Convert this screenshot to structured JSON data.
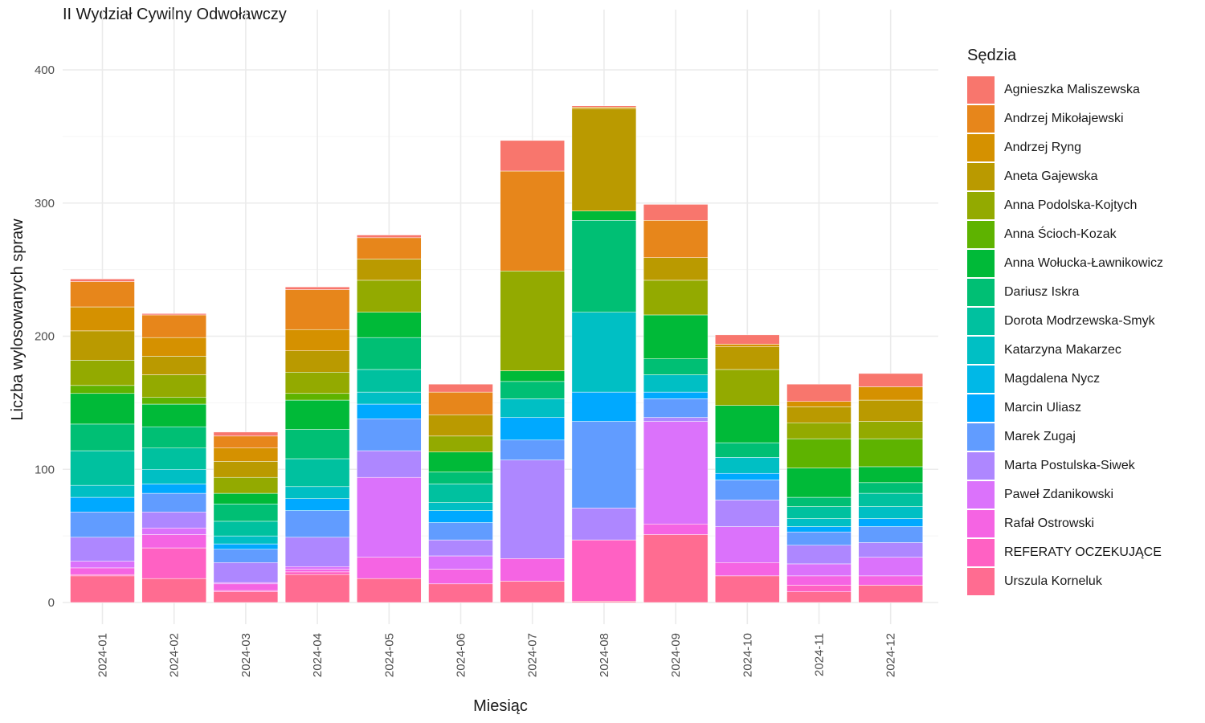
{
  "chart_data": {
    "type": "bar",
    "stacked": true,
    "title": "II Wydział Cywilny Odwoławczy",
    "xlabel": "Miesiąc",
    "ylabel": "Liczba wylosowanych spraw",
    "ylim": [
      0,
      425
    ],
    "yticks": [
      0,
      100,
      200,
      300,
      400
    ],
    "grid": true,
    "legend_title": "Sędzia",
    "legend_position": "right",
    "categories": [
      "2024-01",
      "2024-02",
      "2024-03",
      "2024-04",
      "2024-05",
      "2024-06",
      "2024-07",
      "2024-08",
      "2024-09",
      "2024-10",
      "2024-11",
      "2024-12"
    ],
    "series": [
      {
        "name": "Agnieszka Maliszewska",
        "color": "#F8766D",
        "values": [
          2,
          1,
          3,
          2,
          2,
          6,
          23,
          1,
          12,
          7,
          13,
          10
        ]
      },
      {
        "name": "Andrzej Mikołajewski",
        "color": "#E7861B",
        "values": [
          19,
          17,
          9,
          30,
          16,
          17,
          75,
          0,
          28,
          0,
          0,
          0
        ]
      },
      {
        "name": "Andrzej Ryng",
        "color": "#D59100",
        "values": [
          18,
          14,
          10,
          16,
          0,
          0,
          0,
          1,
          0,
          2,
          4,
          10
        ]
      },
      {
        "name": "Aneta Gajewska",
        "color": "#BA9A00",
        "values": [
          22,
          14,
          12,
          16,
          16,
          16,
          0,
          77,
          17,
          17,
          12,
          16
        ]
      },
      {
        "name": "Anna Podolska-Kojtych",
        "color": "#93AA00",
        "values": [
          19,
          17,
          12,
          16,
          24,
          12,
          75,
          0,
          26,
          27,
          12,
          13
        ]
      },
      {
        "name": "Anna Ścioch-Kozak",
        "color": "#5EB300",
        "values": [
          6,
          5,
          0,
          5,
          0,
          0,
          0,
          0,
          0,
          0,
          22,
          21
        ]
      },
      {
        "name": "Anna Wołucka-Ławnikowicz",
        "color": "#00BA38",
        "values": [
          23,
          17,
          8,
          22,
          19,
          15,
          8,
          7,
          33,
          28,
          22,
          12
        ]
      },
      {
        "name": "Dariusz Iskra",
        "color": "#00BF74",
        "values": [
          20,
          16,
          13,
          22,
          24,
          9,
          13,
          69,
          12,
          11,
          7,
          8
        ]
      },
      {
        "name": "Dorota Modrzewska-Smyk",
        "color": "#00C19F",
        "values": [
          26,
          16,
          11,
          21,
          17,
          14,
          0,
          0,
          0,
          0,
          9,
          10
        ]
      },
      {
        "name": "Katarzyna Makarzec",
        "color": "#00BFC4",
        "values": [
          9,
          11,
          6,
          9,
          9,
          6,
          14,
          60,
          13,
          12,
          6,
          9
        ]
      },
      {
        "name": "Magdalena Nycz",
        "color": "#00B8E7",
        "values": [
          0,
          0,
          0,
          0,
          0,
          0,
          0,
          0,
          0,
          0,
          0,
          0
        ]
      },
      {
        "name": "Marcin Uliasz",
        "color": "#00A9FF",
        "values": [
          11,
          7,
          4,
          9,
          11,
          9,
          17,
          22,
          5,
          5,
          4,
          6
        ]
      },
      {
        "name": "Marek Zugaj",
        "color": "#619CFF",
        "values": [
          19,
          14,
          10,
          20,
          24,
          13,
          15,
          65,
          14,
          15,
          10,
          12
        ]
      },
      {
        "name": "Marta Postulska-Siwek",
        "color": "#AE87FF",
        "values": [
          18,
          12,
          15,
          22,
          20,
          12,
          74,
          24,
          3,
          20,
          14,
          11
        ]
      },
      {
        "name": "Paweł Zdanikowski",
        "color": "#DB72FB",
        "values": [
          5,
          5,
          1,
          2,
          60,
          10,
          0,
          0,
          77,
          27,
          9,
          14
        ]
      },
      {
        "name": "Rafał Ostrowski",
        "color": "#F564E3",
        "values": [
          5,
          10,
          5,
          2,
          16,
          11,
          17,
          0,
          8,
          10,
          7,
          7
        ]
      },
      {
        "name": "REFERATY OCZEKUJĄCE",
        "color": "#FF61C3",
        "values": [
          1,
          23,
          1,
          2,
          0,
          0,
          0,
          46,
          0,
          0,
          5,
          0
        ]
      },
      {
        "name": "Urszula Korneluk",
        "color": "#FF6C91",
        "values": [
          20,
          18,
          8,
          21,
          18,
          14,
          16,
          1,
          51,
          20,
          8,
          13
        ]
      }
    ]
  },
  "colors": {
    "grid_major": "#EBEBEB",
    "grid_minor": "#F5F5F5",
    "tick_text": "#4D4D4D",
    "bar_outline": "#FFFFFF"
  }
}
